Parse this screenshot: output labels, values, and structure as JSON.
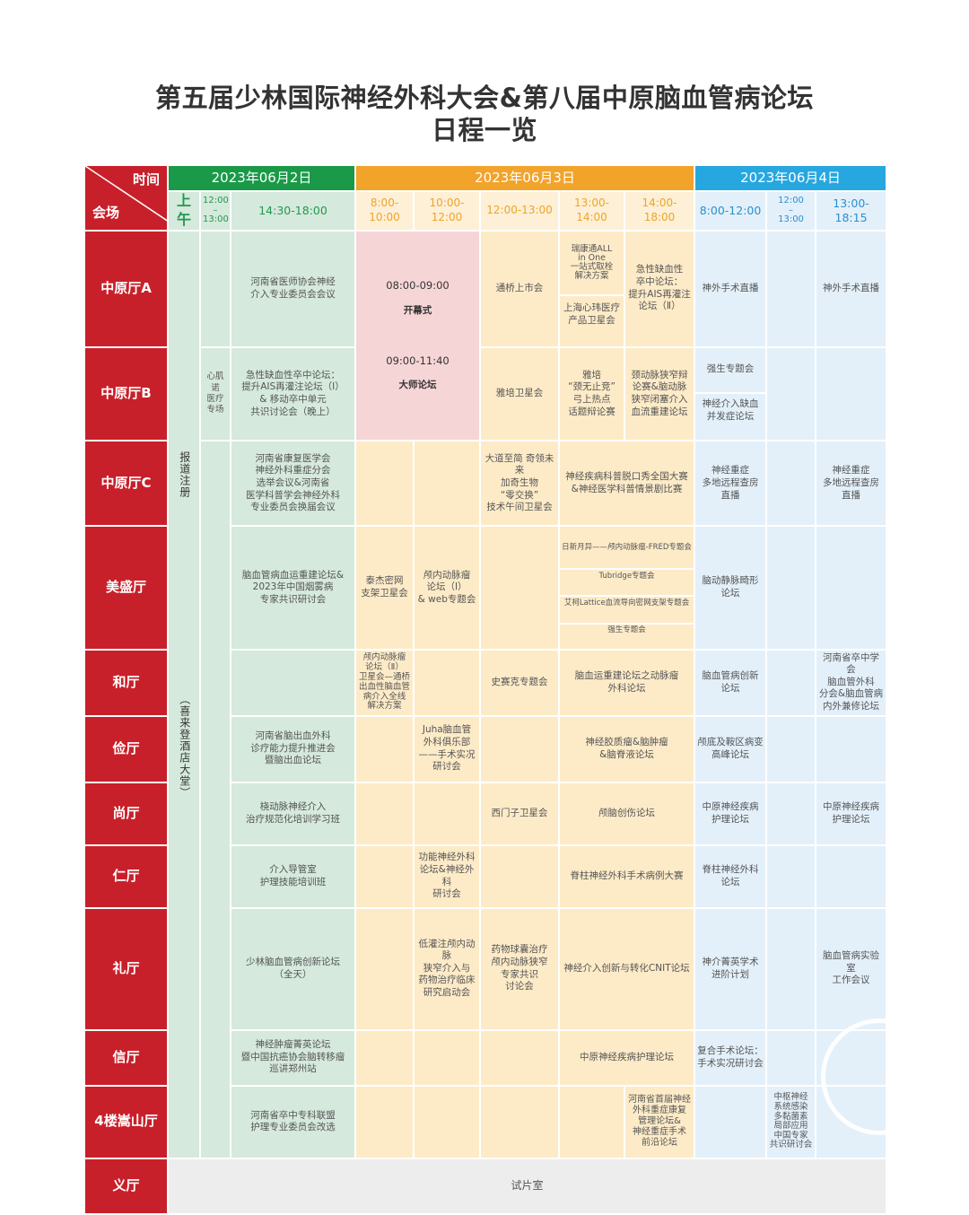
{
  "title": {
    "line1": "第五届少林国际神经外科大会&第八届中原脑血管病论坛",
    "line2": "日程一览"
  },
  "header": {
    "time_label": "时间",
    "venue_label": "会场",
    "dates": [
      "2023年06月2日",
      "2023年06月3日",
      "2023年06月4日"
    ],
    "colors": {
      "jun2": "#1a9a48",
      "jun3": "#f2a32a",
      "jun4": "#27a7e0",
      "venue": "#c8202a"
    },
    "slots": {
      "jun2": [
        "上午",
        "12:00\n–\n13:00",
        "14:30-18:00"
      ],
      "jun3": [
        "8:00-10:00",
        "10:00-12:00",
        "12:00-13:00",
        "13:00-14:00",
        "14:00-18:00"
      ],
      "jun4": [
        "8:00-12:00",
        "12:00\n–\n13:00",
        "13:00-18:15"
      ]
    }
  },
  "registration": {
    "label": "报道注册",
    "location": "（喜来登酒店大堂）"
  },
  "main_session": {
    "opening_time": "08:00-09:00",
    "opening_title": "开幕式",
    "master_time": "09:00-11:40",
    "master_title": "大师论坛"
  },
  "rows": [
    {
      "hall": "中原厅A",
      "jun2_pm": "河南省医师协会神经\n介入专业委员会会议",
      "jun3_noon": "通桥上市会",
      "jun3_1314": [
        "瑞康通ALL\nin One\n一站式取栓\n解决方案",
        "上海心玮医疗\n产品卫星会"
      ],
      "jun3_pm": "急性缺血性\n卒中论坛：\n提升AIS再灌注\n论坛（Ⅱ）",
      "jun4_am": "神外手术直播",
      "jun4_pm": "神外手术直播"
    },
    {
      "hall": "中原厅B",
      "jun2_noon": "心肌诺\n医疗\n专场",
      "jun2_pm": "急性缺血性卒中论坛：\n提升AIS再灌注论坛（Ⅰ）\n&  移动卒中单元\n共识讨论会（晚上）",
      "jun3_noon": "雅培卫星会",
      "jun3_1314": "雅培\n“颈无止竞”\n弓上热点\n话题辩论赛",
      "jun3_pm": "颈动脉狭窄辩\n论赛&脑动脉\n狭窄闭塞介入\n血流重建论坛",
      "jun4_am": [
        "强生专题会",
        "神经介入缺血\n并发症论坛"
      ]
    },
    {
      "hall": "中原厅C",
      "jun2_pm": "河南省康复医学会\n神经外科重症分会\n选举会议&河南省\n医学科普学会神经外科\n专业委员会换届会议",
      "jun3_noon": "大道至简 奇领未来\n加奇生物\n“零交换”\n技术午间卫星会",
      "jun3_aft": "神经疾病科普脱口秀全国大赛\n&神经医学科普情景剧比赛",
      "jun4_am": "神经重症\n多地远程查房\n直播",
      "jun4_pm": "神经重症\n多地远程查房\n直播"
    },
    {
      "hall": "美盛厅",
      "jun2_pm": "脑血管病血运重建论坛&\n2023年中国烟雾病\n专家共识研讨会",
      "jun3_0810": "泰杰密网\n支架卫星会",
      "jun3_1012": "颅内动脉瘤\n论坛（Ⅰ）\n& web专题会",
      "jun3_aft": [
        "日新月异——颅内动脉瘤-FRED专题会",
        "Tubridge专题会",
        "艾柯Lattice血流导向密网支架专题会",
        "强生专题会"
      ],
      "jun4_am": "脑动静脉畸形\n论坛"
    },
    {
      "hall": "和厅",
      "jun3_0810": "颅内动脉瘤\n论坛（Ⅱ）\n卫星会—通桥\n出血性脑血管\n病介入全线\n解决方案",
      "jun3_noon": "史赛克专题会",
      "jun3_aft": "脑血运重建论坛之动脉瘤\n外科论坛",
      "jun4_am": "脑血管病创新\n论坛",
      "jun4_pm": "河南省卒中学会\n脑血管外科\n分会&脑血管病\n内外兼修论坛"
    },
    {
      "hall": "俭厅",
      "jun2_pm": "河南省脑出血外科\n诊疗能力提升推进会\n暨脑出血论坛",
      "jun3_1012": "Juha脑血管\n外科俱乐部\n——手术实况\n研讨会",
      "jun3_aft": "神经胶质瘤&脑肿瘤\n&脑脊液论坛",
      "jun4_am": "颅底及鞍区病变\n高峰论坛"
    },
    {
      "hall": "尚厅",
      "jun2_pm": "桡动脉神经介入\n治疗规范化培训学习班",
      "jun3_noon": "西门子卫星会",
      "jun3_aft": "颅脑创伤论坛",
      "jun4_am": "中原神经疾病\n护理论坛",
      "jun4_pm": "中原神经疾病\n护理论坛"
    },
    {
      "hall": "仁厅",
      "jun2_pm": "介入导管室\n护理技能培训班",
      "jun3_1012": "功能神经外科\n论坛&神经外科\n研讨会",
      "jun3_aft": "脊柱神经外科手术病例大赛",
      "jun4_am": "脊柱神经外科\n论坛"
    },
    {
      "hall": "礼厅",
      "jun2_pm": "少林脑血管病创新论坛\n（全天）",
      "jun3_1012": "低灌注颅内动脉\n狭窄介入与\n药物治疗临床\n研究启动会",
      "jun3_noon": "药物球囊治疗\n颅内动脉狭窄\n专家共识\n讨论会",
      "jun3_aft": "神经介入创新与转化CNIT论坛",
      "jun4_am": "神介菁英学术\n进阶计划",
      "jun4_pm": "脑血管病实验室\n工作会议"
    },
    {
      "hall": "信厅",
      "jun2_pm": "神经肿瘤菁英论坛\n暨中国抗癌协会脑转移瘤\n巡讲郑州站",
      "jun3_aft": "中原神经疾病护理论坛",
      "jun4_am": "复合手术论坛：\n手术实况研讨会"
    },
    {
      "hall": "4楼嵩山厅",
      "jun2_pm": "河南省卒中专科联盟\n护理专业委员会改选",
      "jun3_1418": "河南省首届神经\n外科重症康复\n管理论坛&\n神经重症手术\n前沿论坛",
      "jun4_noon": "中枢神经\n系统感染\n多黏菌素\n局部应用\n中国专家\n共识研讨会"
    },
    {
      "hall": "义厅",
      "all_day": "试片室"
    }
  ]
}
